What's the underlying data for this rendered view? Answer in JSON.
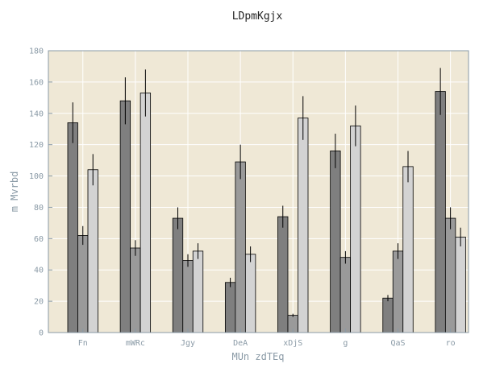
{
  "chart_data": {
    "type": "bar",
    "title": "LDpmKgjx",
    "xlabel": "MUn zdTEq",
    "ylabel": "m Mvrbd",
    "ylim": [
      0,
      180
    ],
    "yticks": [
      0,
      20,
      40,
      60,
      80,
      100,
      120,
      140,
      160,
      180
    ],
    "grid": true,
    "categories": [
      "Fn",
      "mWRc",
      "Jgy",
      "DeA",
      "xDjS",
      "g",
      "QaS",
      "ro"
    ],
    "series": [
      {
        "color": "#7f7f7f",
        "values": [
          134,
          148,
          73,
          32,
          74,
          116,
          22,
          154
        ],
        "errors": [
          13,
          15,
          7,
          3,
          7,
          11,
          2,
          15
        ]
      },
      {
        "color": "#9a9a9a",
        "values": [
          62,
          54,
          46,
          109,
          11,
          48,
          52,
          73
        ],
        "errors": [
          6,
          5,
          4,
          11,
          1,
          4,
          5,
          7
        ]
      },
      {
        "color": "#d3d3d3",
        "values": [
          104,
          153,
          52,
          50,
          137,
          132,
          106,
          61
        ],
        "errors": [
          10,
          15,
          5,
          5,
          14,
          13,
          10,
          6
        ]
      }
    ],
    "colors": {
      "plot_background": "#efe8d6",
      "grid": "#ffffff",
      "axis_text": "#8a9aa6"
    }
  }
}
